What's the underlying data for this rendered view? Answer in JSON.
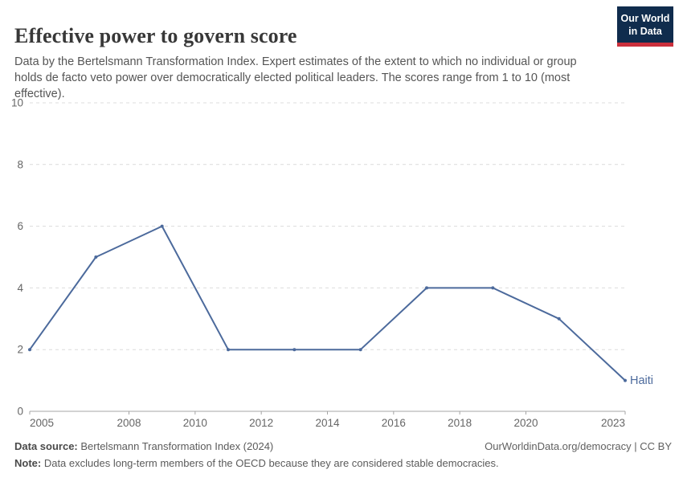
{
  "header": {
    "title": "Effective power to govern score",
    "subtitle": "Data by the Bertelsmann Transformation Index. Expert estimates of the extent to which no individual or group holds de facto veto power over democratically elected political leaders. The scores range from 1 to 10 (most effective)."
  },
  "logo": {
    "line1": "Our World",
    "line2": "in Data"
  },
  "chart_data": {
    "type": "line",
    "title": "Effective power to govern score",
    "xlabel": "",
    "ylabel": "",
    "xlim": [
      2005,
      2023
    ],
    "ylim": [
      0,
      10
    ],
    "xticks": [
      2005,
      2008,
      2010,
      2012,
      2014,
      2016,
      2018,
      2020,
      2023
    ],
    "yticks": [
      0,
      2,
      4,
      6,
      8,
      10
    ],
    "grid": "horizontal-dashed",
    "legend_position": "end-of-line-label",
    "series": [
      {
        "name": "Haiti",
        "x": [
          2005,
          2007,
          2009,
          2011,
          2013,
          2015,
          2017,
          2019,
          2021,
          2023
        ],
        "values": [
          2,
          5,
          6,
          2,
          2,
          2,
          4,
          4,
          3,
          1
        ],
        "color": "#4C6A9C"
      }
    ]
  },
  "footer": {
    "source_label": "Data source:",
    "source_rest": " Bertelsmann Transformation Index (2024)",
    "credit": "OurWorldinData.org/democracy | CC BY",
    "note_label": "Note:",
    "note_rest": " Data excludes long-term members of the OECD because they are considered stable democracies."
  },
  "colors": {
    "line": "#4C6A9C",
    "entity_label": "#4C6A9C",
    "gridline": "#DCDCDC",
    "axis": "#A5A5A5",
    "tick_text": "#666666",
    "title_text": "#383838",
    "subtitle_text": "#555555",
    "logo_background": "#102C4D",
    "logo_stripe": "#CB303C"
  }
}
